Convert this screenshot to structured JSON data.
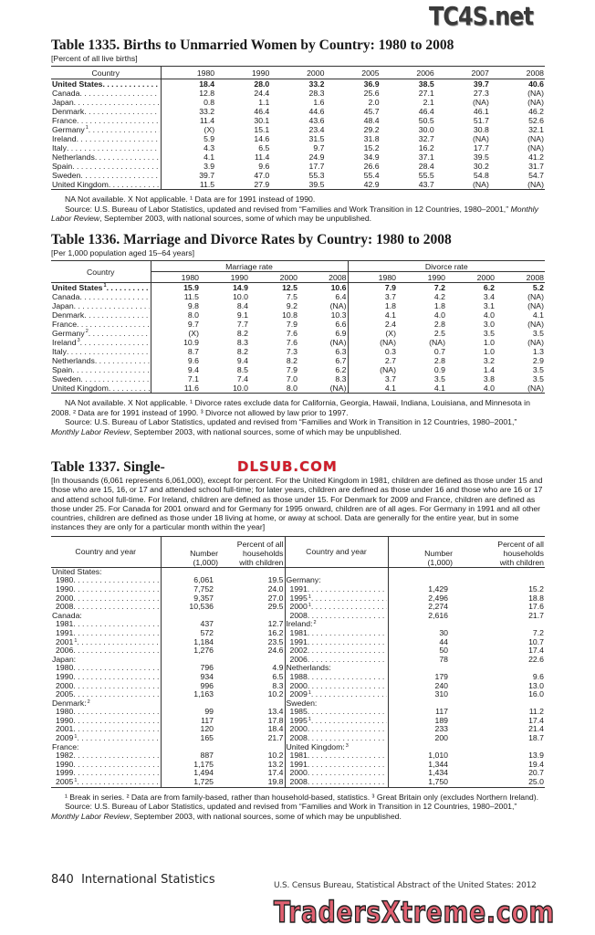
{
  "watermarks": {
    "top": "TC4S.net",
    "middle": "DLSUB.COM",
    "bottom": "TradersXtreme.com"
  },
  "t1335": {
    "title": "Table 1335. Births to Unmarried Women by Country: 1980 to 2008",
    "subtitle": "[Percent of all live births]",
    "headers": [
      "Country",
      "1980",
      "1990",
      "2000",
      "2005",
      "2006",
      "2007",
      "2008"
    ],
    "rows": [
      {
        "country": "United States",
        "sup": "",
        "bold": true,
        "values": [
          "18.4",
          "28.0",
          "33.2",
          "36.9",
          "38.5",
          "39.7",
          "40.6"
        ]
      },
      {
        "country": "Canada",
        "sup": "",
        "values": [
          "12.8",
          "24.4",
          "28.3",
          "25.6",
          "27.1",
          "27.3",
          "(NA)"
        ]
      },
      {
        "country": "Japan",
        "sup": "",
        "values": [
          "0.8",
          "1.1",
          "1.6",
          "2.0",
          "2.1",
          "(NA)",
          "(NA)"
        ]
      },
      {
        "country": "Denmark",
        "sup": "",
        "values": [
          "33.2",
          "46.4",
          "44.6",
          "45.7",
          "46.4",
          "46.1",
          "46.2"
        ]
      },
      {
        "country": "France",
        "sup": "",
        "values": [
          "11.4",
          "30.1",
          "43.6",
          "48.4",
          "50.5",
          "51.7",
          "52.6"
        ]
      },
      {
        "country": "Germany",
        "sup": "1",
        "values": [
          "(X)",
          "15.1",
          "23.4",
          "29.2",
          "30.0",
          "30.8",
          "32.1"
        ]
      },
      {
        "country": "Ireland",
        "sup": "",
        "values": [
          "5.9",
          "14.6",
          "31.5",
          "31.8",
          "32.7",
          "(NA)",
          "(NA)"
        ]
      },
      {
        "country": "Italy",
        "sup": "",
        "values": [
          "4.3",
          "6.5",
          "9.7",
          "15.2",
          "16.2",
          "17.7",
          "(NA)"
        ]
      },
      {
        "country": "Netherlands",
        "sup": "",
        "values": [
          "4.1",
          "11.4",
          "24.9",
          "34.9",
          "37.1",
          "39.5",
          "41.2"
        ]
      },
      {
        "country": "Spain",
        "sup": "",
        "values": [
          "3.9",
          "9.6",
          "17.7",
          "26.6",
          "28.4",
          "30.2",
          "31.7"
        ]
      },
      {
        "country": "Sweden",
        "sup": "",
        "values": [
          "39.7",
          "47.0",
          "55.3",
          "55.4",
          "55.5",
          "54.8",
          "54.7"
        ]
      },
      {
        "country": "United Kingdom",
        "sup": "",
        "values": [
          "11.5",
          "27.9",
          "39.5",
          "42.9",
          "43.7",
          "(NA)",
          "(NA)"
        ]
      }
    ],
    "note": "NA Not available. X Not applicable. ¹ Data are for 1991 instead of 1990.",
    "source_prefix": "Source: U.S. Bureau of Labor Statistics, updated and revised from “Families and Work Transition in 12 Countries, 1980–2001,”",
    "source_journal": "Monthly Labor Review",
    "source_suffix": ", September 2003, with national sources, some of which may be unpublished."
  },
  "t1336": {
    "title": "Table 1336. Marriage and Divorce Rates by Country: 1980 to 2008",
    "subtitle": "[Per 1,000 population aged 15–64 years]",
    "country_header": "Country",
    "group_headers": [
      "Marriage rate",
      "Divorce rate"
    ],
    "years": [
      "1980",
      "1990",
      "2000",
      "2008",
      "1980",
      "1990",
      "2000",
      "2008"
    ],
    "rows": [
      {
        "country": "United States",
        "sup": "1",
        "bold": true,
        "values": [
          "15.9",
          "14.9",
          "12.5",
          "10.6",
          "7.9",
          "7.2",
          "6.2",
          "5.2"
        ]
      },
      {
        "country": "Canada",
        "sup": "",
        "values": [
          "11.5",
          "10.0",
          "7.5",
          "6.4",
          "3.7",
          "4.2",
          "3.4",
          "(NA)"
        ]
      },
      {
        "country": "Japan",
        "sup": "",
        "values": [
          "9.8",
          "8.4",
          "9.2",
          "(NA)",
          "1.8",
          "1.8",
          "3.1",
          "(NA)"
        ]
      },
      {
        "country": "Denmark",
        "sup": "",
        "values": [
          "8.0",
          "9.1",
          "10.8",
          "10.3",
          "4.1",
          "4.0",
          "4.0",
          "4.1"
        ]
      },
      {
        "country": "France",
        "sup": "",
        "values": [
          "9.7",
          "7.7",
          "7.9",
          "6.6",
          "2.4",
          "2.8",
          "3.0",
          "(NA)"
        ]
      },
      {
        "country": "Germany",
        "sup": "2",
        "values": [
          "(X)",
          "8.2",
          "7.6",
          "6.9",
          "(X)",
          "2.5",
          "3.5",
          "3.5"
        ]
      },
      {
        "country": "Ireland",
        "sup": "3",
        "values": [
          "10.9",
          "8.3",
          "7.6",
          "(NA)",
          "(NA)",
          "(NA)",
          "1.0",
          "(NA)"
        ]
      },
      {
        "country": "Italy",
        "sup": "",
        "values": [
          "8.7",
          "8.2",
          "7.3",
          "6.3",
          "0.3",
          "0.7",
          "1.0",
          "1.3"
        ]
      },
      {
        "country": "Netherlands",
        "sup": "",
        "values": [
          "9.6",
          "9.4",
          "8.2",
          "6.7",
          "2.7",
          "2.8",
          "3.2",
          "2.9"
        ]
      },
      {
        "country": "Spain",
        "sup": "",
        "values": [
          "9.4",
          "8.5",
          "7.9",
          "6.2",
          "(NA)",
          "0.9",
          "1.4",
          "3.5"
        ]
      },
      {
        "country": "Sweden",
        "sup": "",
        "values": [
          "7.1",
          "7.4",
          "7.0",
          "8.3",
          "3.7",
          "3.5",
          "3.8",
          "3.5"
        ]
      },
      {
        "country": "United Kingdom",
        "sup": "",
        "values": [
          "11.6",
          "10.0",
          "8.0",
          "(NA)",
          "4.1",
          "4.1",
          "4.0",
          "(NA)"
        ]
      }
    ],
    "note": "NA Not available. X Not applicable. ¹ Divorce rates exclude data for California, Georgia, Hawaii, Indiana, Louisiana, and Minnesota in 2008. ² Data are for 1991 instead of 1990. ³ Divorce not allowed by law prior to 1997.",
    "source_prefix": "Source: U.S. Bureau of Labor Statistics, updated and revised from “Families and Work in Transition in 12 Countries, 1980–2001,”",
    "source_journal": "Monthly Labor Review",
    "source_suffix": ", September 2003, with national sources, some of which may be unpublished."
  },
  "t1337": {
    "title": "Table 1337. Single-",
    "headnote": "[In thousands (6,061 represents 6,061,000), except for percent. For the United Kingdom in 1981, children are defined as those under 15 and those who are 15, 16, or 17 and attended school full-time; for later years, children are defined as those under 16 and those who are 16 or 17 and attend school full-time. For Ireland, children are defined as those under 15. For Denmark for 2009 and France, children are defined as those under 25. For Canada for 2001 onward and for Germany for 1995 onward, children are of all ages. For Germany in 1991 and all other countries, children are defined as those under 18 living at home, or away  at school. Data are generally for the entire year, but in some instances they are only for a particular month within the year]",
    "headers": {
      "country": "Country and year",
      "number": "Number",
      "number_unit": "(1,000)",
      "percent_1": "Percent of all",
      "percent_2": "households",
      "percent_3": "with children"
    },
    "left": [
      {
        "country": "United States:",
        "sup": "",
        "rows": [
          {
            "year": "1980",
            "sup": "",
            "number": "6,061",
            "percent": "19.5"
          },
          {
            "year": "1990",
            "sup": "",
            "number": "7,752",
            "percent": "24.0"
          },
          {
            "year": "2000",
            "sup": "",
            "number": "9,357",
            "percent": "27.0"
          },
          {
            "year": "2008",
            "sup": "",
            "number": "10,536",
            "percent": "29.5"
          }
        ]
      },
      {
        "country": "Canada:",
        "sup": "",
        "rows": [
          {
            "year": "1981",
            "sup": "",
            "number": "437",
            "percent": "12.7"
          },
          {
            "year": "1991",
            "sup": "",
            "number": "572",
            "percent": "16.2"
          },
          {
            "year": "2001",
            "sup": "1",
            "number": "1,184",
            "percent": "23.5"
          },
          {
            "year": "2006",
            "sup": "",
            "number": "1,276",
            "percent": "24.6"
          }
        ]
      },
      {
        "country": "Japan:",
        "sup": "",
        "rows": [
          {
            "year": "1980",
            "sup": "",
            "number": "796",
            "percent": "4.9"
          },
          {
            "year": "1990",
            "sup": "",
            "number": "934",
            "percent": "6.5"
          },
          {
            "year": "2000",
            "sup": "",
            "number": "996",
            "percent": "8.3"
          },
          {
            "year": "2005",
            "sup": "",
            "number": "1,163",
            "percent": "10.2"
          }
        ]
      },
      {
        "country": "Denmark:",
        "sup": "2",
        "rows": [
          {
            "year": "1980",
            "sup": "",
            "number": "99",
            "percent": "13.4"
          },
          {
            "year": "1990",
            "sup": "",
            "number": "117",
            "percent": "17.8"
          },
          {
            "year": "2001",
            "sup": "",
            "number": "120",
            "percent": "18.4"
          },
          {
            "year": "2009",
            "sup": "1",
            "number": "165",
            "percent": "21.7"
          }
        ]
      },
      {
        "country": "France:",
        "sup": "",
        "rows": [
          {
            "year": "1982",
            "sup": "",
            "number": "887",
            "percent": "10.2"
          },
          {
            "year": "1990",
            "sup": "",
            "number": "1,175",
            "percent": "13.2"
          },
          {
            "year": "1999",
            "sup": "",
            "number": "1,494",
            "percent": "17.4"
          },
          {
            "year": "2005",
            "sup": "1",
            "number": "1,725",
            "percent": "19.8"
          }
        ]
      }
    ],
    "right": [
      {
        "country": "Germany:",
        "sup": "",
        "rows": [
          {
            "year": "1991",
            "sup": "",
            "number": "1,429",
            "percent": "15.2"
          },
          {
            "year": "1995",
            "sup": "1",
            "number": "2,496",
            "percent": "18.8"
          },
          {
            "year": "2000",
            "sup": "1",
            "number": "2,274",
            "percent": "17.6"
          },
          {
            "year": "2008",
            "sup": "",
            "number": "2,616",
            "percent": "21.7"
          }
        ]
      },
      {
        "country": "Ireland:",
        "sup": "2",
        "rows": [
          {
            "year": "1981",
            "sup": "",
            "number": "30",
            "percent": "7.2"
          },
          {
            "year": "1991",
            "sup": "",
            "number": "44",
            "percent": "10.7"
          },
          {
            "year": "2002",
            "sup": "",
            "number": "50",
            "percent": "17.4"
          },
          {
            "year": "2006",
            "sup": "",
            "number": "78",
            "percent": "22.6"
          }
        ]
      },
      {
        "country": "Netherlands:",
        "sup": "",
        "rows": [
          {
            "year": "1988",
            "sup": "",
            "number": "179",
            "percent": "9.6"
          },
          {
            "year": "2000",
            "sup": "",
            "number": "240",
            "percent": "13.0"
          },
          {
            "year": "2009",
            "sup": "1",
            "number": "310",
            "percent": "16.0"
          }
        ]
      },
      {
        "country": "Sweden:",
        "sup": "",
        "rows": [
          {
            "year": "1985",
            "sup": "",
            "number": "117",
            "percent": "11.2"
          },
          {
            "year": "1995",
            "sup": "1",
            "number": "189",
            "percent": "17.4"
          },
          {
            "year": "2000",
            "sup": "",
            "number": "233",
            "percent": "21.4"
          },
          {
            "year": "2008",
            "sup": "",
            "number": "200",
            "percent": "18.7"
          }
        ]
      },
      {
        "country": "United Kingdom:",
        "sup": "3",
        "rows": [
          {
            "year": "1981",
            "sup": "",
            "number": "1,010",
            "percent": "13.9"
          },
          {
            "year": "1991",
            "sup": "",
            "number": "1,344",
            "percent": "19.4"
          },
          {
            "year": "2000",
            "sup": "",
            "number": "1,434",
            "percent": "20.7"
          },
          {
            "year": "2008",
            "sup": "",
            "number": "1,750",
            "percent": "25.0"
          }
        ]
      }
    ],
    "note": "¹ Break in series. ² Data are from family-based, rather than household-based, statistics. ³ Great Britain only (excludes Northern Ireland).",
    "source_prefix": "Source: U.S. Bureau of Labor Statistics, updated and revised from “Families and Work in Transition in 12 Countries, 1980–2001,”",
    "source_journal": "Monthly Labor Review",
    "source_suffix": ", September 2003, with national sources, some of which may be unpublished."
  },
  "footer": {
    "page": "840  International Statistics",
    "publication": "U.S. Census Bureau, Statistical Abstract of the United States: 2012"
  }
}
